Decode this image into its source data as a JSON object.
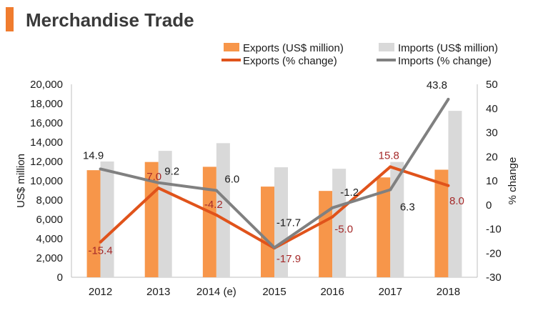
{
  "page_title": "Merchandise Trade",
  "colors": {
    "accent": "#f07c2e",
    "exports_bar": "#f7964a",
    "imports_bar": "#d9d9d9",
    "exports_line": "#e0531b",
    "imports_line": "#808080",
    "exports_label": "#a52a2a",
    "imports_label": "#1a1a1a"
  },
  "chart_data": {
    "type": "bar",
    "title": "Merchandise Trade",
    "categories": [
      "2012",
      "2013",
      "2014 (e)",
      "2015",
      "2016",
      "2017",
      "2018"
    ],
    "ylabel": "US$ million",
    "y2label": "% change",
    "ylim": [
      0,
      20000
    ],
    "y_ticks": [
      "0",
      "2,000",
      "4,000",
      "6,000",
      "8,000",
      "10,000",
      "12,000",
      "14,000",
      "16,000",
      "18,000",
      "20,000"
    ],
    "y2lim": [
      -30,
      50
    ],
    "y2_ticks": [
      "-30",
      "-20",
      "-10",
      "0",
      "10",
      "20",
      "30",
      "40",
      "50"
    ],
    "legend_position": "top-right",
    "grid": false,
    "series": [
      {
        "name": "Exports (US$ million)",
        "kind": "bar",
        "axis": "left",
        "values": [
          11100,
          11950,
          11450,
          9400,
          8950,
          10350,
          11150
        ]
      },
      {
        "name": "Imports (US$ million)",
        "kind": "bar",
        "axis": "left",
        "values": [
          12000,
          13100,
          13900,
          11400,
          11250,
          11950,
          17250
        ]
      },
      {
        "name": "Exports (% change)",
        "kind": "line",
        "axis": "right",
        "values": [
          -15.4,
          7.0,
          -4.2,
          -17.9,
          -5.0,
          15.8,
          8.0
        ],
        "labels": [
          "-15.4",
          "7.0",
          "-4.2",
          "-17.9",
          "-5.0",
          "15.8",
          "8.0"
        ]
      },
      {
        "name": "Imports (% change)",
        "kind": "line",
        "axis": "right",
        "values": [
          14.9,
          9.2,
          6.0,
          -17.7,
          -1.2,
          6.3,
          43.8
        ],
        "labels": [
          "14.9",
          "9.2",
          "6.0",
          "-17.7",
          "-1.2",
          "6.3",
          "43.8"
        ]
      }
    ]
  }
}
